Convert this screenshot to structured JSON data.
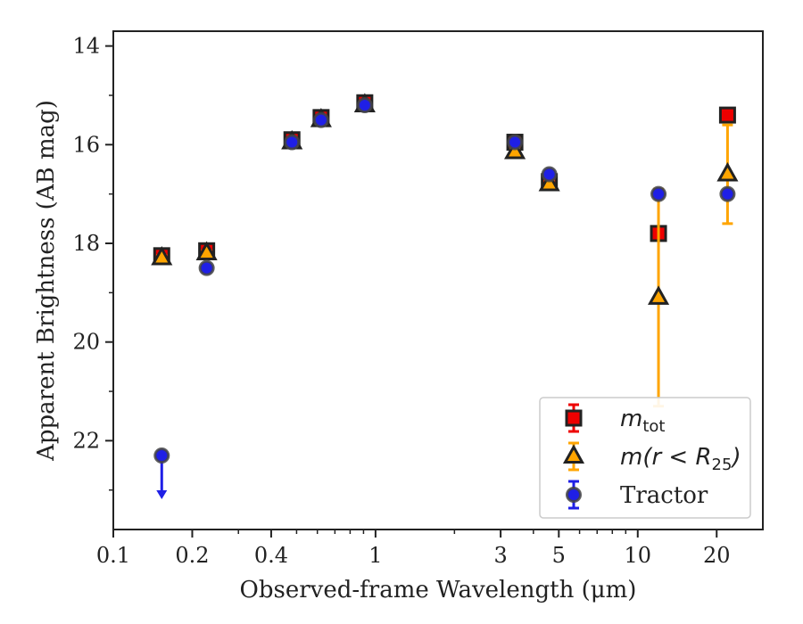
{
  "chart_data": {
    "type": "scatter",
    "xlabel": "Observed-frame Wavelength (μm)",
    "ylabel": "Apparent Brightness (AB mag)",
    "xscale": "log",
    "xlim": [
      0.1,
      30
    ],
    "ylim": [
      23.8,
      13.7
    ],
    "y_inverted": true,
    "grid": false,
    "legend_position": "bottom-right",
    "x_ticks": [
      0.1,
      0.2,
      0.4,
      1,
      3,
      5,
      10,
      20
    ],
    "x_tick_labels": [
      "0.1",
      "0.2",
      "0.4",
      "1",
      "3",
      "5",
      "10",
      "20"
    ],
    "y_ticks": [
      14,
      16,
      18,
      20,
      22
    ],
    "y_tick_labels": [
      "14",
      "16",
      "18",
      "20",
      "22"
    ],
    "series": [
      {
        "name": "m_tot",
        "legend_main": "m",
        "legend_sub": "tot",
        "marker": "square",
        "color": "#ee0000",
        "points": [
          {
            "x": 0.153,
            "y": 18.25,
            "err": 0.1
          },
          {
            "x": 0.227,
            "y": 18.15,
            "err": 0.1
          },
          {
            "x": 0.48,
            "y": 15.9,
            "err": 0.1
          },
          {
            "x": 0.62,
            "y": 15.45,
            "err": 0.1
          },
          {
            "x": 0.91,
            "y": 15.15,
            "err": 0.1
          },
          {
            "x": 3.4,
            "y": 15.95,
            "err": 0.05
          },
          {
            "x": 4.6,
            "y": 16.75,
            "err": 0.1
          },
          {
            "x": 12.0,
            "y": 17.8,
            "err": 0.05
          },
          {
            "x": 22.0,
            "y": 15.4,
            "err": 0.05
          }
        ]
      },
      {
        "name": "m(r < R25)",
        "legend_main": "m(r < R",
        "legend_sub": "25",
        "legend_tail": ")",
        "marker": "triangle",
        "color": "#ffa500",
        "points": [
          {
            "x": 0.153,
            "y": 18.3,
            "err": 0.05
          },
          {
            "x": 0.227,
            "y": 18.2,
            "err": 0.05
          },
          {
            "x": 0.48,
            "y": 15.95,
            "err": 0.05
          },
          {
            "x": 0.62,
            "y": 15.5,
            "err": 0.05
          },
          {
            "x": 0.91,
            "y": 15.2,
            "err": 0.05
          },
          {
            "x": 3.4,
            "y": 16.15,
            "err": 0.05
          },
          {
            "x": 4.6,
            "y": 16.8,
            "err": 0.05
          },
          {
            "x": 12.0,
            "y": 19.1,
            "err": 2.2
          },
          {
            "x": 22.0,
            "y": 16.6,
            "err": 1.0
          }
        ]
      },
      {
        "name": "Tractor",
        "marker": "circle",
        "color": "#1f1fe6",
        "points": [
          {
            "x": 0.153,
            "y": 22.3,
            "upper_limit": true
          },
          {
            "x": 0.227,
            "y": 18.5
          },
          {
            "x": 0.48,
            "y": 15.95
          },
          {
            "x": 0.62,
            "y": 15.5
          },
          {
            "x": 0.91,
            "y": 15.2
          },
          {
            "x": 3.4,
            "y": 15.95
          },
          {
            "x": 4.6,
            "y": 16.6
          },
          {
            "x": 12.0,
            "y": 17.0
          },
          {
            "x": 22.0,
            "y": 17.0
          }
        ]
      }
    ]
  }
}
